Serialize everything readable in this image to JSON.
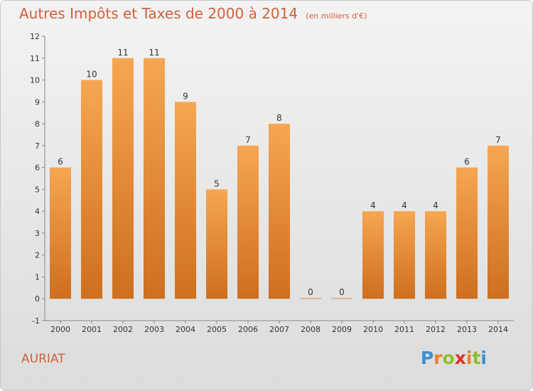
{
  "header": {
    "title": "Autres Impôts et Taxes de 2000 à 2014",
    "unit": "(en milliers d'€)"
  },
  "footer": {
    "commune": "AURIAT",
    "logo": "Proxiti"
  },
  "colors": {
    "bar_light": "#f6a652",
    "bar_dark": "#cd6f1f",
    "text": "#d2603a"
  },
  "chart_data": {
    "type": "bar",
    "categories": [
      "2000",
      "2001",
      "2002",
      "2003",
      "2004",
      "2005",
      "2006",
      "2007",
      "2008",
      "2009",
      "2010",
      "2011",
      "2012",
      "2013",
      "2014"
    ],
    "values": [
      6,
      10,
      11,
      11,
      9,
      5,
      7,
      8,
      0,
      0,
      4,
      4,
      4,
      6,
      7
    ],
    "data_labels": [
      "6",
      "10",
      "11",
      "11",
      "9",
      "5",
      "7",
      "8",
      "0",
      "0",
      "4",
      "4",
      "4",
      "6",
      "7"
    ],
    "ylim": [
      -1,
      12
    ],
    "yticks": [
      -1,
      0,
      1,
      2,
      3,
      4,
      5,
      6,
      7,
      8,
      9,
      10,
      11,
      12
    ],
    "ytick_labels": [
      "-1",
      "0",
      "1",
      "2",
      "3",
      "4",
      "5",
      "6",
      "7",
      "8",
      "9",
      "10",
      "11",
      "12"
    ],
    "grid": false,
    "legend": "none"
  }
}
